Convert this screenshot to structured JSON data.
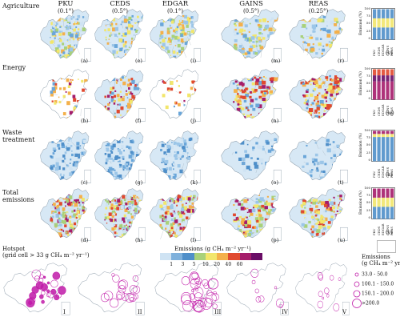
{
  "columns": [
    {
      "name": "PKU",
      "res": "(0.1°)"
    },
    {
      "name": "CEDS",
      "res": "(0.5°)"
    },
    {
      "name": "EDGAR",
      "res": "(0.1°)"
    },
    {
      "name": "GAINS",
      "res": "(0.5°)"
    },
    {
      "name": "REAS",
      "res": "(0.25°)"
    }
  ],
  "rows": [
    {
      "label": "Agriculture",
      "panels": [
        "(a)",
        "(e)",
        "(i)",
        "(m)",
        "(r)",
        "(v)"
      ]
    },
    {
      "label": "Energy",
      "panels": [
        "(b)",
        "(f)",
        "(j)",
        "(n)",
        "(s)",
        "(w)"
      ]
    },
    {
      "label": "Waste treatment",
      "panels": [
        "(c)",
        "(g)",
        "(k)",
        "(o)",
        "(t)",
        "(x)"
      ]
    },
    {
      "label": "Total emissions",
      "panels": [
        "(d)",
        "(h)",
        "(l)",
        "(p)",
        "(u)",
        "(y)"
      ]
    }
  ],
  "bar_axis": {
    "ylabel": "Emission (%)",
    "ticks": [
      "100",
      "75",
      "50",
      "25",
      "0"
    ],
    "categories": [
      "PKU",
      "CEDS",
      "EDGAR",
      "GAINS",
      "REAS"
    ]
  },
  "hotspot": {
    "title_line1": "Hotspot",
    "title_line2": "(grid cell > 33 g CH₄ m⁻² yr⁻¹)",
    "panels": [
      "I",
      "II",
      "III",
      "IV",
      "V"
    ]
  },
  "colorbar": {
    "title": "Emissions (g CH₄  m⁻² yr⁻¹)",
    "ticks": [
      "1",
      "3",
      "5",
      "10",
      "20",
      "40",
      "60"
    ],
    "colors": [
      "#cfe3f3",
      "#7fb1dc",
      "#4f8fc9",
      "#a9d17a",
      "#f2e66b",
      "#f4b04a",
      "#e0492f",
      "#a51d6b",
      "#6a0d66"
    ]
  },
  "hotspot_legend": {
    "title_line1": "Emissions",
    "title_line2": "(g CH₄ m⁻² yr⁻¹)",
    "items": [
      "33.0 - 50.0",
      "100.1 - 150.0",
      "150.1 - 200.0",
      ">200.0"
    ]
  }
}
